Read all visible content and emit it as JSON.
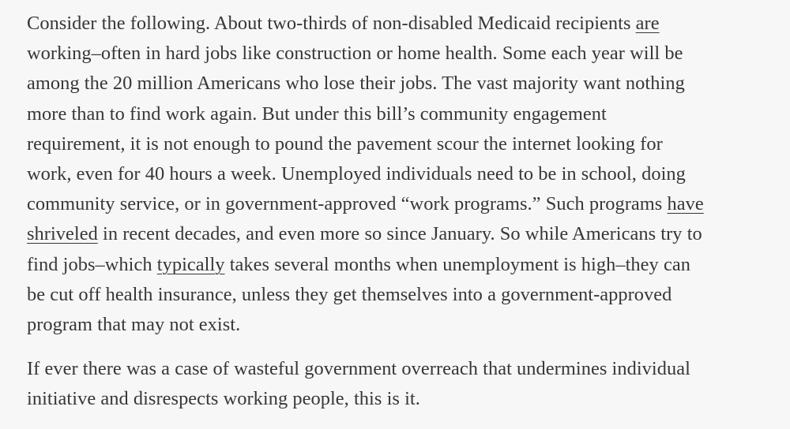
{
  "article": {
    "paragraphs": [
      {
        "lines": [
          [
            {
              "text": "Consider the following. About two-thirds of non-disabled Medicaid recipients "
            },
            {
              "text": "are",
              "link": true
            }
          ],
          [
            {
              "text": "working–often in hard jobs like construction or home health. Some each year will be"
            }
          ],
          [
            {
              "text": "among the 20 million Americans who lose their jobs. The vast majority want nothing"
            }
          ],
          [
            {
              "text": "more than to find work again. But under this bill’s community engagement"
            }
          ],
          [
            {
              "text": "requirement, it is not enough to pound the pavement scour the internet looking for"
            }
          ],
          [
            {
              "text": "work, even for 40 hours a week. Unemployed individuals need to be in school, doing"
            }
          ],
          [
            {
              "text": "community service, or in government-approved “work programs.” Such programs "
            },
            {
              "text": "have",
              "link": true
            }
          ],
          [
            {
              "text": "shriveled",
              "link": true
            },
            {
              "text": " in recent decades, and even more so since January. So while Americans try to"
            }
          ],
          [
            {
              "text": "find jobs–which "
            },
            {
              "text": "typically",
              "link": true
            },
            {
              "text": " takes several months when unemployment is high–they can"
            }
          ],
          [
            {
              "text": "be cut off health insurance, unless they get themselves into a government-approved"
            }
          ],
          [
            {
              "text": "program that may not exist."
            }
          ]
        ]
      },
      {
        "lines": [
          [
            {
              "text": "If ever there was a case of wasteful government overreach that undermines individual"
            }
          ],
          [
            {
              "text": "initiative and disrespects working people, this is it."
            }
          ]
        ]
      }
    ]
  },
  "colors": {
    "background": "#f7f7f7",
    "text": "#363737"
  }
}
